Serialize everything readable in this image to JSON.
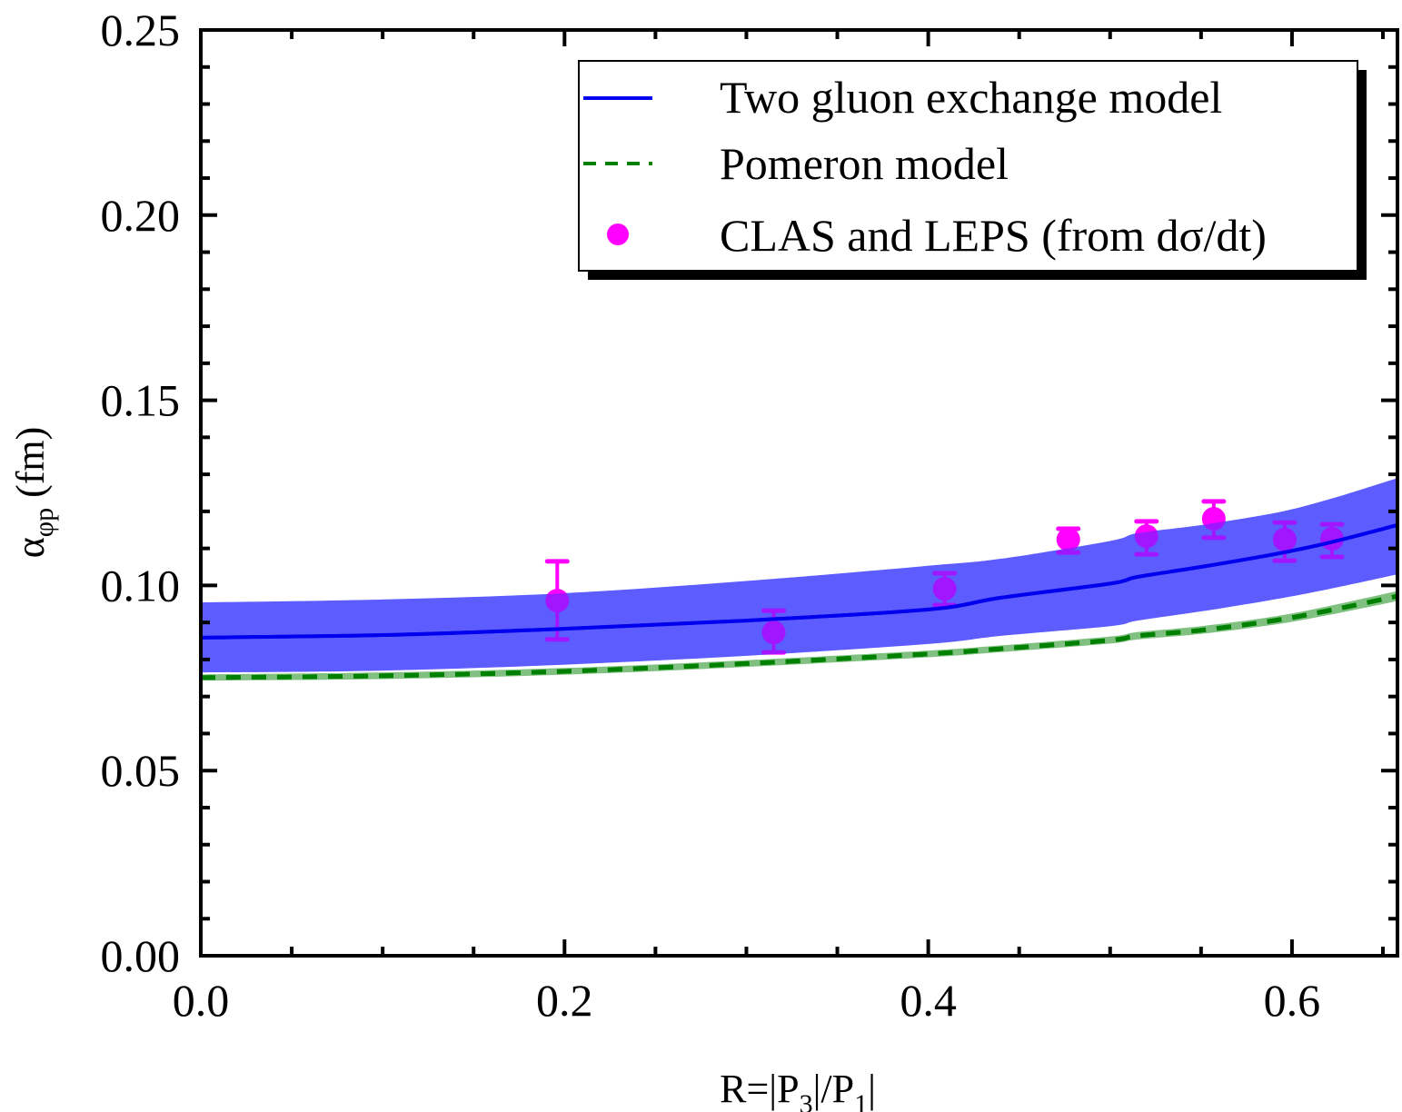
{
  "chart_data": {
    "type": "line",
    "title": "",
    "xlabel": "R=|P3|/P1",
    "xlabel_parts": {
      "main": "R=|P",
      "sub1": "3",
      "mid": "|/P",
      "sub2": "1",
      "end": "|"
    },
    "ylabel": "αφp (fm)",
    "ylabel_parts": {
      "symbol": "α",
      "sub": "φp",
      "unit": " (fm)"
    },
    "xlim": [
      0.0,
      0.658
    ],
    "ylim": [
      0.0,
      0.25
    ],
    "xticks": [
      0.0,
      0.2,
      0.4,
      0.6
    ],
    "xtick_labels": [
      "0.0",
      "0.2",
      "0.4",
      "0.6"
    ],
    "x_minor_step": 0.05,
    "yticks": [
      0.0,
      0.05,
      0.1,
      0.15,
      0.2,
      0.25
    ],
    "ytick_labels": [
      "0.00",
      "0.05",
      "0.10",
      "0.15",
      "0.20",
      "0.25"
    ],
    "y_minor_step": 0.01,
    "grid": false,
    "legend_position": "top-right",
    "series": [
      {
        "name": "Two gluon exchange model",
        "kind": "line",
        "color": "#0000ee",
        "style": "solid",
        "x": [
          0.0,
          0.1,
          0.2,
          0.3,
          0.4,
          0.44,
          0.5,
          0.515,
          0.55,
          0.59,
          0.62,
          0.658
        ],
        "y": [
          0.0859,
          0.0866,
          0.0883,
          0.0905,
          0.0935,
          0.0967,
          0.1005,
          0.1023,
          0.105,
          0.1084,
          0.1115,
          0.1163
        ],
        "band": {
          "color": "#8080ff",
          "upper": [
            0.0954,
            0.0962,
            0.0979,
            0.1012,
            0.1053,
            0.1072,
            0.112,
            0.1141,
            0.1163,
            0.1195,
            0.1232,
            0.129
          ],
          "lower": [
            0.0765,
            0.077,
            0.0786,
            0.081,
            0.0842,
            0.0864,
            0.089,
            0.0905,
            0.093,
            0.0962,
            0.099,
            0.103
          ]
        }
      },
      {
        "name": "Pomeron model",
        "kind": "line",
        "color": "#008000",
        "style": "dashed",
        "x": [
          0.0,
          0.1,
          0.2,
          0.3,
          0.4,
          0.44,
          0.5,
          0.515,
          0.55,
          0.59,
          0.62,
          0.658
        ],
        "y": [
          0.0751,
          0.0756,
          0.0768,
          0.0789,
          0.0815,
          0.0829,
          0.0852,
          0.0864,
          0.0879,
          0.0905,
          0.0932,
          0.0971
        ],
        "band": {
          "color": "#80c080",
          "upper": [
            0.076,
            0.0765,
            0.0777,
            0.0798,
            0.0824,
            0.0838,
            0.0862,
            0.0874,
            0.089,
            0.0916,
            0.0944,
            0.0985
          ],
          "lower": [
            0.0743,
            0.0747,
            0.0759,
            0.078,
            0.0806,
            0.082,
            0.0843,
            0.0854,
            0.0869,
            0.0894,
            0.092,
            0.0958
          ]
        }
      },
      {
        "name": "CLAS and LEPS (from dσ/dt)",
        "kind": "scatter",
        "color": "#ff00ff",
        "points": [
          {
            "x": 0.196,
            "y": 0.0959,
            "err_up": 0.1065,
            "err_low": 0.0854
          },
          {
            "x": 0.315,
            "y": 0.0873,
            "err_up": 0.0932,
            "err_low": 0.0819
          },
          {
            "x": 0.409,
            "y": 0.0991,
            "err_up": 0.1033,
            "err_low": 0.0947
          },
          {
            "x": 0.477,
            "y": 0.1124,
            "err_up": 0.1153,
            "err_low": 0.1089
          },
          {
            "x": 0.52,
            "y": 0.1133,
            "err_up": 0.1173,
            "err_low": 0.1084
          },
          {
            "x": 0.557,
            "y": 0.118,
            "err_up": 0.1227,
            "err_low": 0.1129
          },
          {
            "x": 0.596,
            "y": 0.1124,
            "err_up": 0.117,
            "err_low": 0.1067
          },
          {
            "x": 0.622,
            "y": 0.1126,
            "err_up": 0.1165,
            "err_low": 0.1077
          }
        ]
      }
    ],
    "legend": [
      {
        "label": "Two gluon exchange model",
        "symbol": "solid-line",
        "color": "#0000ee"
      },
      {
        "label": "Pomeron model",
        "symbol": "dashed-line",
        "color": "#008000"
      },
      {
        "label": "CLAS and LEPS (from dσ/dt)",
        "symbol": "circle",
        "color": "#ff00ff"
      }
    ]
  }
}
